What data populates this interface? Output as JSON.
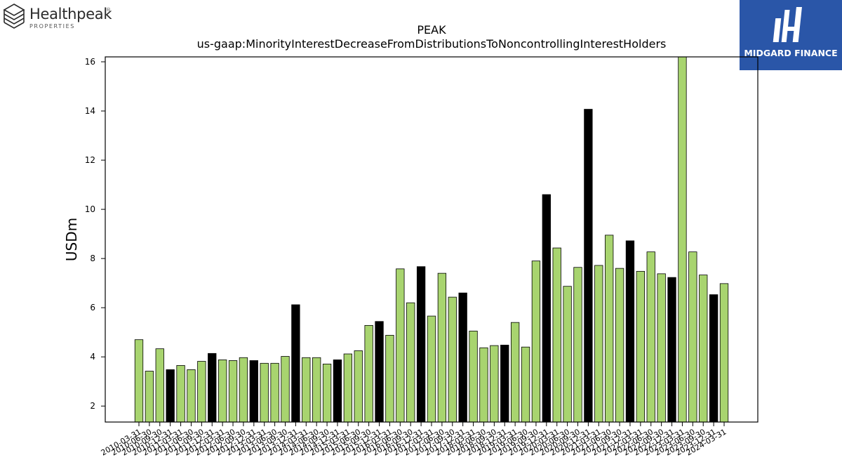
{
  "logos": {
    "left_brand": "Healthpeak",
    "left_registered": "®",
    "left_sub": "PROPERTIES",
    "right_brand": "MIDGARD FINANCE"
  },
  "colors": {
    "bar_default": "#a8d46f",
    "bar_highlight": "#000000"
  },
  "chart_data": {
    "type": "bar",
    "title": "PEAK",
    "subtitle": "us-gaap:MinorityInterestDecreaseFromDistributionsToNoncontrollingInterestHolders",
    "xlabel": "",
    "ylabel": "USDm",
    "ylim": [
      1.35,
      16.2
    ],
    "yticks": [
      2,
      4,
      6,
      8,
      10,
      12,
      14,
      16
    ],
    "grid": false,
    "categories": [
      "2010-03-31",
      "2010-06-30",
      "2010-09-30",
      "2010-12-31",
      "2011-03-31",
      "2011-06-30",
      "2011-09-30",
      "2011-12-31",
      "2012-03-31",
      "2012-06-30",
      "2012-09-30",
      "2012-12-31",
      "2013-03-31",
      "2013-06-30",
      "2013-09-30",
      "2013-12-31",
      "2014-03-31",
      "2014-06-30",
      "2014-09-30",
      "2014-12-31",
      "2015-03-31",
      "2015-06-30",
      "2015-09-30",
      "2015-12-31",
      "2016-03-31",
      "2016-06-30",
      "2016-09-30",
      "2016-12-31",
      "2017-03-31",
      "2017-06-30",
      "2017-09-30",
      "2017-12-31",
      "2018-03-31",
      "2018-06-30",
      "2018-09-30",
      "2018-12-31",
      "2019-03-31",
      "2019-06-30",
      "2019-09-30",
      "2019-12-31",
      "2020-03-31",
      "2020-06-30",
      "2020-09-30",
      "2020-12-31",
      "2021-03-31",
      "2021-06-30",
      "2021-09-30",
      "2021-12-31",
      "2022-03-31",
      "2022-06-30",
      "2022-09-30",
      "2022-12-31",
      "2023-03-31",
      "2023-06-30",
      "2023-09-30",
      "2023-12-31",
      "2024-03-31"
    ],
    "values": [
      4.7,
      3.42,
      4.33,
      3.48,
      3.65,
      3.48,
      3.82,
      4.14,
      3.88,
      3.85,
      3.97,
      3.85,
      3.74,
      3.74,
      4.02,
      6.12,
      3.97,
      3.97,
      3.71,
      3.88,
      4.12,
      4.25,
      5.28,
      5.44,
      4.88,
      7.58,
      6.2,
      7.67,
      5.66,
      7.4,
      6.43,
      6.6,
      5.05,
      4.37,
      4.46,
      4.48,
      5.4,
      4.4,
      7.9,
      10.6,
      8.43,
      6.87,
      7.64,
      14.07,
      7.72,
      8.95,
      7.6,
      8.72,
      7.48,
      8.27,
      7.38,
      7.23,
      16.3,
      8.27,
      7.33,
      6.53,
      6.98
    ],
    "highlight": [
      false,
      false,
      false,
      true,
      false,
      false,
      false,
      true,
      false,
      false,
      false,
      true,
      false,
      false,
      false,
      true,
      false,
      false,
      false,
      true,
      false,
      false,
      false,
      true,
      false,
      false,
      false,
      true,
      false,
      false,
      false,
      true,
      false,
      false,
      false,
      true,
      false,
      false,
      false,
      true,
      false,
      false,
      false,
      true,
      false,
      false,
      false,
      true,
      false,
      false,
      false,
      true,
      false,
      false,
      false,
      true,
      false
    ]
  }
}
